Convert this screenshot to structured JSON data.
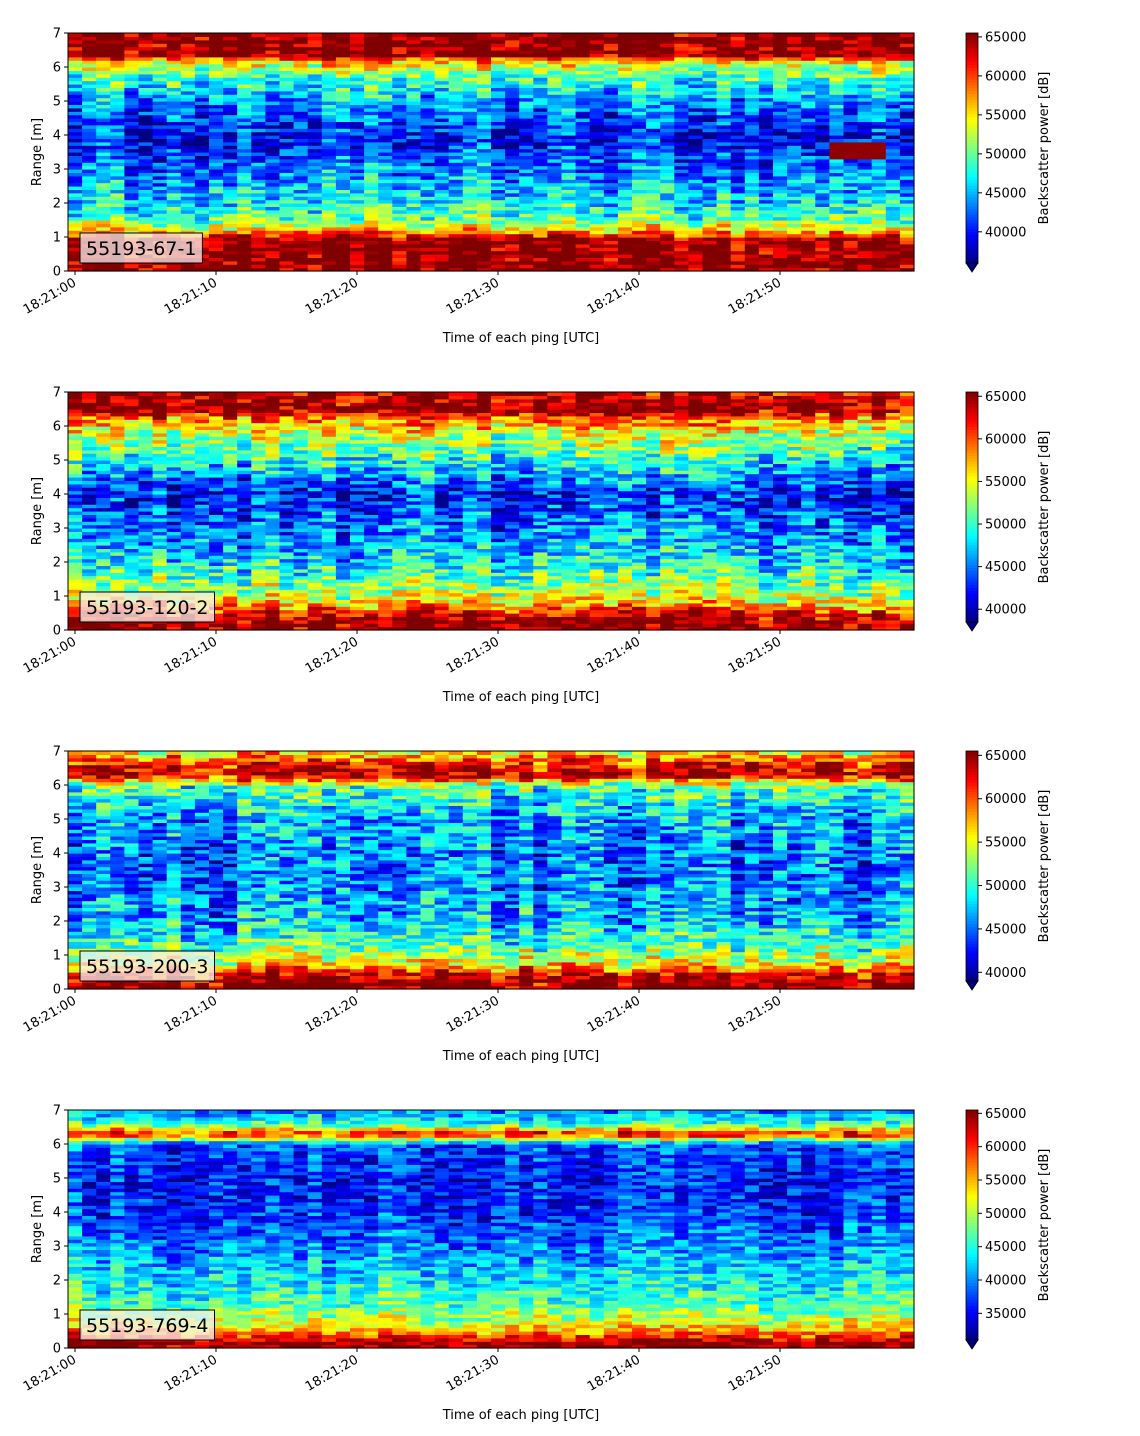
{
  "chart_data": [
    {
      "type": "heatmap",
      "label": "55193-67-1",
      "xlabel": "Time of each ping [UTC]",
      "ylabel": "Range [m]",
      "x_ticks": [
        "18:21:00",
        "18:21:10",
        "18:21:20",
        "18:21:30",
        "18:21:40",
        "18:21:50"
      ],
      "y_ticks": [
        0,
        1,
        2,
        3,
        4,
        5,
        6,
        7
      ],
      "ylim": [
        0,
        7
      ],
      "colorbar_label": "Backscatter power [dB]",
      "colorbar_ticks": [
        40000,
        45000,
        50000,
        55000,
        60000,
        65000
      ],
      "colorbar_range": [
        36000,
        65500
      ],
      "colormap": "jet",
      "profile": [
        {
          "range": 0.0,
          "value": 65000
        },
        {
          "range": 0.25,
          "value": 65500
        },
        {
          "range": 0.95,
          "value": 65000
        },
        {
          "range": 1.2,
          "value": 56000
        },
        {
          "range": 1.5,
          "value": 50000
        },
        {
          "range": 2.0,
          "value": 47000
        },
        {
          "range": 3.0,
          "value": 43000
        },
        {
          "range": 4.0,
          "value": 39500
        },
        {
          "range": 5.0,
          "value": 44000
        },
        {
          "range": 5.8,
          "value": 50000
        },
        {
          "range": 6.2,
          "value": 56000
        },
        {
          "range": 6.35,
          "value": 65500
        },
        {
          "range": 7.0,
          "value": 65500
        }
      ],
      "feature": {
        "time_start": "18:21:54",
        "time_end": "18:21:58",
        "range_low": 3.3,
        "range_high": 3.8,
        "value": 65000
      }
    },
    {
      "type": "heatmap",
      "label": "55193-120-2",
      "xlabel": "Time of each ping [UTC]",
      "ylabel": "Range [m]",
      "x_ticks": [
        "18:21:00",
        "18:21:10",
        "18:21:20",
        "18:21:30",
        "18:21:40",
        "18:21:50"
      ],
      "y_ticks": [
        0,
        1,
        2,
        3,
        4,
        5,
        6,
        7
      ],
      "ylim": [
        0,
        7
      ],
      "colorbar_label": "Backscatter power [dB]",
      "colorbar_ticks": [
        40000,
        45000,
        50000,
        55000,
        60000,
        65000
      ],
      "colorbar_range": [
        38500,
        65500
      ],
      "colormap": "jet",
      "profile": [
        {
          "range": 0.0,
          "value": 65000
        },
        {
          "range": 0.2,
          "value": 65500
        },
        {
          "range": 0.5,
          "value": 62000
        },
        {
          "range": 0.8,
          "value": 56000
        },
        {
          "range": 1.3,
          "value": 52000
        },
        {
          "range": 2.0,
          "value": 48000
        },
        {
          "range": 3.0,
          "value": 45000
        },
        {
          "range": 4.0,
          "value": 42000
        },
        {
          "range": 5.0,
          "value": 49000
        },
        {
          "range": 5.8,
          "value": 54000
        },
        {
          "range": 6.2,
          "value": 58000
        },
        {
          "range": 6.5,
          "value": 65500
        },
        {
          "range": 7.0,
          "value": 63000
        }
      ]
    },
    {
      "type": "heatmap",
      "label": "55193-200-3",
      "xlabel": "Time of each ping [UTC]",
      "ylabel": "Range [m]",
      "x_ticks": [
        "18:21:00",
        "18:21:10",
        "18:21:20",
        "18:21:30",
        "18:21:40",
        "18:21:50"
      ],
      "y_ticks": [
        0,
        1,
        2,
        3,
        4,
        5,
        6,
        7
      ],
      "ylim": [
        0,
        7
      ],
      "colorbar_label": "Backscatter power [dB]",
      "colorbar_ticks": [
        40000,
        45000,
        50000,
        55000,
        60000,
        65000
      ],
      "colorbar_range": [
        39000,
        65500
      ],
      "colormap": "jet",
      "profile": [
        {
          "range": 0.0,
          "value": 65000
        },
        {
          "range": 0.2,
          "value": 65500
        },
        {
          "range": 0.45,
          "value": 62000
        },
        {
          "range": 0.8,
          "value": 55000
        },
        {
          "range": 1.4,
          "value": 50000
        },
        {
          "range": 2.0,
          "value": 47000
        },
        {
          "range": 3.0,
          "value": 45500
        },
        {
          "range": 4.0,
          "value": 45000
        },
        {
          "range": 5.0,
          "value": 46500
        },
        {
          "range": 6.0,
          "value": 51000
        },
        {
          "range": 6.3,
          "value": 64000
        },
        {
          "range": 6.6,
          "value": 62000
        },
        {
          "range": 7.0,
          "value": 55000
        }
      ]
    },
    {
      "type": "heatmap",
      "label": "55193-769-4",
      "xlabel": "Time of each ping [UTC]",
      "ylabel": "Range [m]",
      "x_ticks": [
        "18:21:00",
        "18:21:10",
        "18:21:20",
        "18:21:30",
        "18:21:40",
        "18:21:50"
      ],
      "y_ticks": [
        0,
        1,
        2,
        3,
        4,
        5,
        6,
        7
      ],
      "ylim": [
        0,
        7
      ],
      "colorbar_label": "Backscatter power [dB]",
      "colorbar_ticks": [
        35000,
        40000,
        45000,
        50000,
        55000,
        60000,
        65000
      ],
      "colorbar_range": [
        31000,
        65500
      ],
      "colormap": "jet",
      "profile": [
        {
          "range": 0.0,
          "value": 65000
        },
        {
          "range": 0.15,
          "value": 65500
        },
        {
          "range": 0.35,
          "value": 60000
        },
        {
          "range": 0.7,
          "value": 52000
        },
        {
          "range": 1.3,
          "value": 47000
        },
        {
          "range": 2.0,
          "value": 44000
        },
        {
          "range": 3.0,
          "value": 40000
        },
        {
          "range": 4.0,
          "value": 37000
        },
        {
          "range": 5.0,
          "value": 36000
        },
        {
          "range": 6.0,
          "value": 38500
        },
        {
          "range": 6.3,
          "value": 62000
        },
        {
          "range": 6.6,
          "value": 46000
        },
        {
          "range": 7.0,
          "value": 40000
        }
      ]
    }
  ]
}
